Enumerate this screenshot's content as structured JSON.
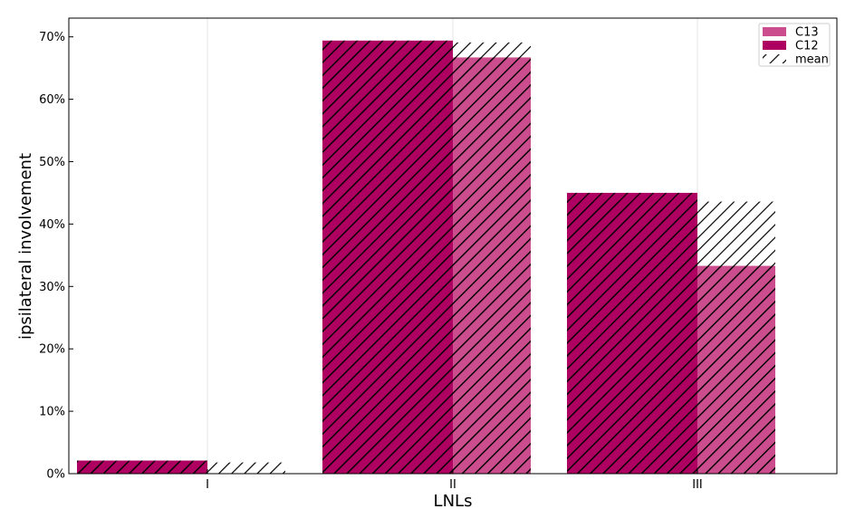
{
  "chart_data": {
    "type": "bar",
    "title": "",
    "xlabel": "LNLs",
    "ylabel": "ipsilateral involvement",
    "categories": [
      "I",
      "II",
      "III"
    ],
    "ylim": [
      0,
      73
    ],
    "yticks": [
      0,
      10,
      20,
      30,
      40,
      50,
      60,
      70
    ],
    "ytick_labels": [
      "0%",
      "10%",
      "20%",
      "30%",
      "40%",
      "50%",
      "60%",
      "70%"
    ],
    "grid": "vertical",
    "legend_position": "top-right",
    "series": [
      {
        "name": "C13",
        "values": [
          0.0,
          66.7,
          33.3
        ],
        "color": "#CC4D8E",
        "style": "hatched"
      },
      {
        "name": "C12",
        "values": [
          2.1,
          69.4,
          45.0
        ],
        "color": "#AE0060",
        "style": "hatched"
      }
    ],
    "mean": {
      "name": "mean",
      "values": [
        1.8,
        69.1,
        43.6
      ],
      "style": "hatched-outline"
    },
    "legend": [
      {
        "label": "C13",
        "swatch": "solid",
        "color": "#CC4D8E"
      },
      {
        "label": "C12",
        "swatch": "solid",
        "color": "#AE0060"
      },
      {
        "label": "mean",
        "swatch": "hatch",
        "color": "#000000"
      }
    ]
  }
}
